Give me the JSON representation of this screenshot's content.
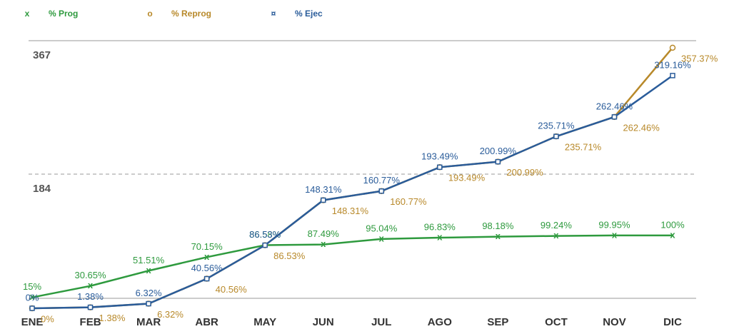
{
  "chart_data": {
    "type": "line",
    "categories": [
      "ENE",
      "FEB",
      "MAR",
      "ABR",
      "MAY",
      "JUN",
      "JUL",
      "AGO",
      "SEP",
      "OCT",
      "NOV",
      "DIC"
    ],
    "ylim": [
      0,
      367
    ],
    "yticks": [
      184,
      367
    ],
    "grid": true,
    "series": [
      {
        "name": "% Prog",
        "color": "#2e9a3e",
        "marker": "x",
        "values": [
          15,
          30.65,
          51.51,
          70.15,
          86.58,
          87.49,
          95.04,
          96.83,
          98.18,
          99.24,
          99.95,
          100
        ],
        "value_labels": [
          "15%",
          "30.65%",
          "51.51%",
          "70.15%",
          "86.58%",
          "87.49%",
          "95.04%",
          "96.83%",
          "98.18%",
          "99.24%",
          "99.95%",
          "100%"
        ]
      },
      {
        "name": "% Reprog",
        "color": "#b8892a",
        "marker": "o",
        "values": [
          0,
          1.38,
          6.32,
          40.56,
          86.53,
          148.31,
          160.77,
          193.49,
          200.99,
          235.71,
          262.46,
          357.37
        ],
        "value_labels": [
          "0%",
          "1.38%",
          "6.32%",
          "40.56%",
          "86.53%",
          "148.31%",
          "160.77%",
          "193.49%",
          "200.99%",
          "235.71%",
          "262.46%",
          "357.37%"
        ]
      },
      {
        "name": "% Ejec",
        "color": "#2a5c9a",
        "marker": "¤",
        "values": [
          0,
          1.38,
          6.32,
          40.56,
          86.53,
          148.31,
          160.77,
          193.49,
          200.99,
          235.71,
          262.46,
          319.16
        ],
        "value_labels": [
          "0%",
          "1.38%",
          "6.32%",
          "40.56%",
          "86.53%",
          "148.31%",
          "160.77%",
          "193.49%",
          "200.99%",
          "235.71%",
          "262.46%",
          "319.16%"
        ]
      }
    ]
  }
}
